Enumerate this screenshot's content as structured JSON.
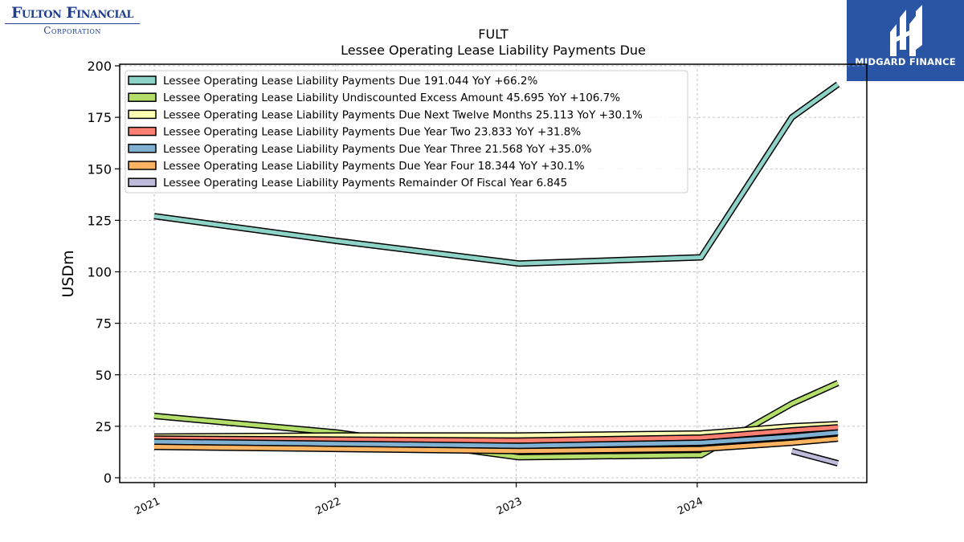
{
  "logos": {
    "company_line1": "Fulton Financial",
    "company_line2": "Corporation",
    "brand": "MIDGARD FINANCE"
  },
  "chart_data": {
    "type": "line",
    "title": "FULT",
    "subtitle": "Lessee Operating Lease Liability Payments Due",
    "xlabel": "",
    "ylabel": "USDm",
    "x_ticks": [
      "2021",
      "2022",
      "2023",
      "2024"
    ],
    "y_ticks": [
      "0",
      "25",
      "50",
      "75",
      "100",
      "125",
      "150",
      "175",
      "200"
    ],
    "ylim": [
      -2,
      200
    ],
    "grid": true,
    "legend_position": "top-left",
    "series": [
      {
        "name": "Lessee Operating Lease Liability Payments Due",
        "legend": "Lessee Operating Lease Liability Payments Due  191.044 YoY +66.2%",
        "color": "#8dd3c7",
        "points": [
          [
            "2020-12-31",
            127.0
          ],
          [
            "2021-12-31",
            115.0
          ],
          [
            "2022-12-31",
            104.0
          ],
          [
            "2023-12-31",
            107.0
          ],
          [
            "2024-06-30",
            175.0
          ],
          [
            "2024-09-30",
            191.0
          ]
        ]
      },
      {
        "name": "Lessee Operating Lease Liability Undiscounted Excess Amount",
        "legend": "Lessee Operating Lease Liability Undiscounted Excess Amount  45.695 YoY +106.7%",
        "color": "#b3de69",
        "points": [
          [
            "2020-12-31",
            30.0
          ],
          [
            "2021-12-31",
            22.0
          ],
          [
            "2022-12-31",
            10.0
          ],
          [
            "2023-12-31",
            11.0
          ],
          [
            "2024-06-30",
            36.0
          ],
          [
            "2024-09-30",
            46.0
          ]
        ]
      },
      {
        "name": "Lessee Operating Lease Liability Payments Due Next Twelve Months",
        "legend": "Lessee Operating Lease Liability Payments Due Next Twelve Months  25.113 YoY +30.1%",
        "color": "#ffffb3",
        "points": [
          [
            "2020-12-31",
            20.0
          ],
          [
            "2021-12-31",
            20.5
          ],
          [
            "2022-12-31",
            20.5
          ],
          [
            "2023-12-31",
            21.5
          ],
          [
            "2024-06-30",
            25.0
          ],
          [
            "2024-09-30",
            26.0
          ]
        ]
      },
      {
        "name": "Lessee Operating Lease Liability Payments Due Year Two",
        "legend": "Lessee Operating Lease Liability Payments Due Year Two  23.833 YoY +31.8%",
        "color": "#fb8072",
        "points": [
          [
            "2020-12-31",
            19.0
          ],
          [
            "2021-12-31",
            18.5
          ],
          [
            "2022-12-31",
            18.0
          ],
          [
            "2023-12-31",
            19.5
          ],
          [
            "2024-06-30",
            23.0
          ],
          [
            "2024-09-30",
            24.5
          ]
        ]
      },
      {
        "name": "Lessee Operating Lease Liability Payments Due Year Three",
        "legend": "Lessee Operating Lease Liability Payments Due Year Three  21.568 YoY +35.0%",
        "color": "#80b1d3",
        "points": [
          [
            "2020-12-31",
            17.5
          ],
          [
            "2021-12-31",
            16.5
          ],
          [
            "2022-12-31",
            15.5
          ],
          [
            "2023-12-31",
            17.0
          ],
          [
            "2024-06-30",
            20.0
          ],
          [
            "2024-09-30",
            22.0
          ]
        ]
      },
      {
        "name": "Lessee Operating Lease Liability Payments Due Year Four",
        "legend": "Lessee Operating Lease Liability Payments Due Year Four  18.344 YoY +30.1%",
        "color": "#fdb462",
        "points": [
          [
            "2020-12-31",
            15.0
          ],
          [
            "2021-12-31",
            14.0
          ],
          [
            "2022-12-31",
            13.0
          ],
          [
            "2023-12-31",
            14.0
          ],
          [
            "2024-06-30",
            17.0
          ],
          [
            "2024-09-30",
            19.0
          ]
        ]
      },
      {
        "name": "Lessee Operating Lease Liability Payments Remainder Of Fiscal Year",
        "legend": "Lessee Operating Lease Liability Payments Remainder Of Fiscal Year  6.845",
        "color": "#bebada",
        "points": [
          [
            "2024-06-30",
            13.0
          ],
          [
            "2024-09-30",
            7.0
          ]
        ]
      }
    ]
  }
}
